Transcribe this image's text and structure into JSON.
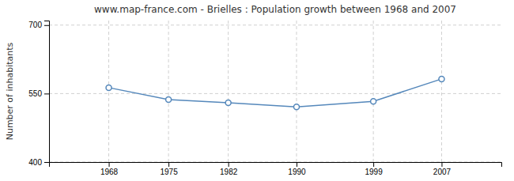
{
  "chart_data": {
    "type": "line",
    "title": "www.map-france.com - Brielles : Population growth between 1968 and 2007",
    "y_label": "Number of inhabitants",
    "x": [
      1968,
      1975,
      1982,
      1990,
      1999,
      2007
    ],
    "values": [
      563,
      537,
      530,
      521,
      533,
      582
    ],
    "xlim": [
      1961,
      2014
    ],
    "xticks": [
      1968,
      1975,
      1982,
      1990,
      1999,
      2007
    ],
    "ylim": [
      400,
      710
    ],
    "yticks": [
      400,
      550,
      700
    ],
    "color": "#5588bb",
    "marker": "circle",
    "grid": true
  }
}
